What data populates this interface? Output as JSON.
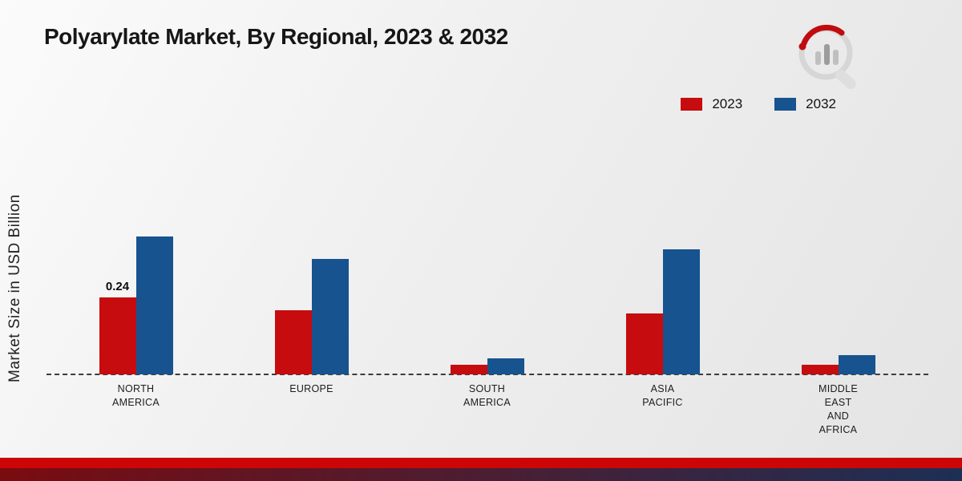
{
  "title": "Polyarylate Market, By Regional, 2023 & 2032",
  "ylabel": "Market Size in USD Billion",
  "colors": {
    "series_2023": "#c60c0e",
    "series_2032": "#17538f",
    "footer_red": "#cc0606",
    "footer_gradient_left": "#7a0c10",
    "footer_gradient_right": "#1c2f55",
    "baseline": "#3c3c3c"
  },
  "chart_data": {
    "type": "bar",
    "title": "Polyarylate Market, By Regional, 2023 & 2032",
    "xlabel": "",
    "ylabel": "Market Size in USD Billion",
    "ylim": [
      0,
      0.5
    ],
    "grid": false,
    "legend_position": "top-right",
    "baseline_style": "dashed",
    "categories": [
      "NORTH AMERICA",
      "EUROPE",
      "SOUTH AMERICA",
      "ASIA PACIFIC",
      "MIDDLE EAST AND AFRICA"
    ],
    "category_lines": [
      [
        "NORTH",
        "AMERICA"
      ],
      [
        "EUROPE"
      ],
      [
        "SOUTH",
        "AMERICA"
      ],
      [
        "ASIA",
        "PACIFIC"
      ],
      [
        "MIDDLE",
        "EAST",
        "AND",
        "AFRICA"
      ]
    ],
    "series": [
      {
        "name": "2023",
        "color": "#c60c0e",
        "values": [
          0.24,
          0.2,
          0.03,
          0.19,
          0.03
        ]
      },
      {
        "name": "2032",
        "color": "#17538f",
        "values": [
          0.43,
          0.36,
          0.05,
          0.39,
          0.06
        ]
      }
    ],
    "data_labels": [
      {
        "series": "2023",
        "category_index": 0,
        "text": "0.24"
      }
    ]
  }
}
